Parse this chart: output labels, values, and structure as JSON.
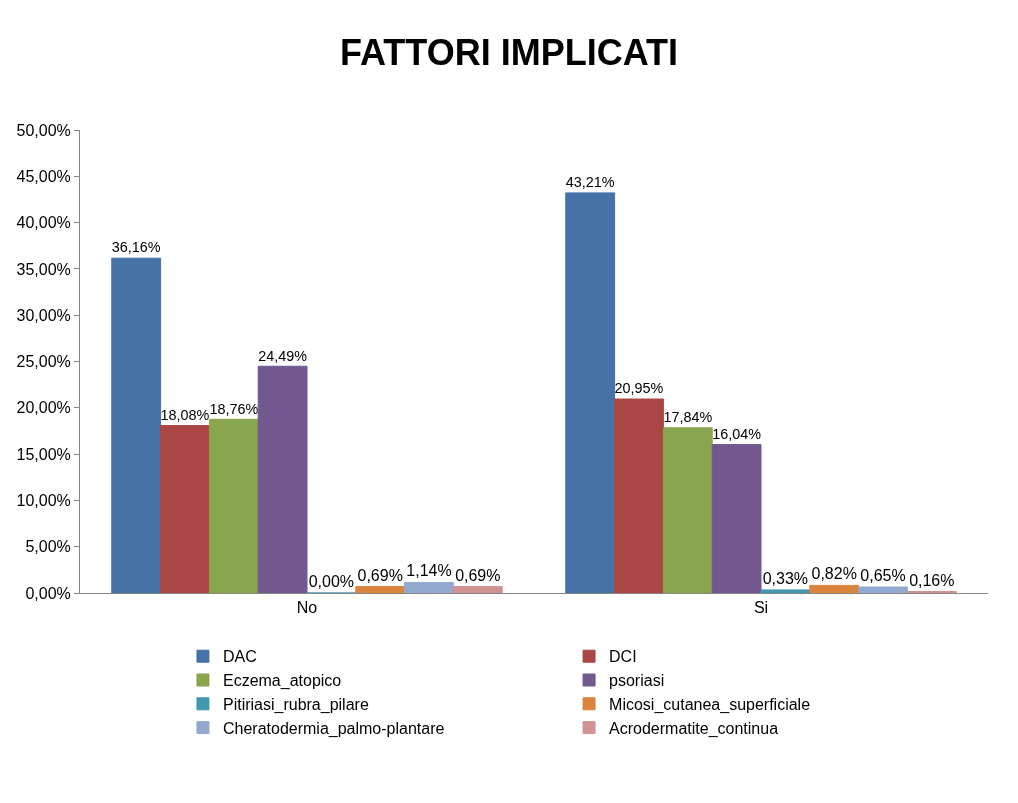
{
  "chart_data": {
    "type": "bar",
    "title": "FATTORI IMPLICATI",
    "categories": [
      "No",
      "Si"
    ],
    "series": [
      {
        "name": "DAC",
        "color": "#4572a7",
        "values": [
          36.16,
          43.21
        ],
        "value_labels": [
          "36,16%",
          "43,21%"
        ]
      },
      {
        "name": "DCI",
        "color": "#aa4643",
        "values": [
          18.08,
          20.95
        ],
        "value_labels": [
          "18,08%",
          "20,95%"
        ]
      },
      {
        "name": "Eczema_atopico",
        "color": "#89a54e",
        "values": [
          18.76,
          17.84
        ],
        "value_labels": [
          "18,76%",
          "17,84%"
        ]
      },
      {
        "name": "psoriasi",
        "color": "#71588f",
        "values": [
          24.49,
          16.04
        ],
        "value_labels": [
          "24,49%",
          "16,04%"
        ]
      },
      {
        "name": "Pitiriasi_rubra_pilare",
        "color": "#4198af",
        "values": [
          0.0,
          0.33
        ],
        "value_labels": [
          "0,00%",
          "0,33%"
        ]
      },
      {
        "name": "Micosi_cutanea_superficiale",
        "color": "#db843d",
        "values": [
          0.69,
          0.82
        ],
        "value_labels": [
          "0,69%",
          "0,82%"
        ]
      },
      {
        "name": "Cheratodermia_palmo-plantare",
        "color": "#93a9cf",
        "values": [
          1.14,
          0.65
        ],
        "value_labels": [
          "1,14%",
          "0,65%"
        ]
      },
      {
        "name": "Acrodermatite_continua",
        "color": "#d19392",
        "values": [
          0.69,
          0.16
        ],
        "value_labels": [
          "0,69%",
          "0,16%"
        ]
      }
    ],
    "ylim": [
      0,
      50
    ],
    "yticks": [
      {
        "value": 0,
        "label": "0,00%"
      },
      {
        "value": 5,
        "label": "5,00%"
      },
      {
        "value": 10,
        "label": "10,00%"
      },
      {
        "value": 15,
        "label": "15,00%"
      },
      {
        "value": 20,
        "label": "20,00%"
      },
      {
        "value": 25,
        "label": "25,00%"
      },
      {
        "value": 30,
        "label": "30,00%"
      },
      {
        "value": 35,
        "label": "35,00%"
      },
      {
        "value": 40,
        "label": "40,00%"
      },
      {
        "value": 45,
        "label": "45,00%"
      },
      {
        "value": 50,
        "label": "50,00%"
      }
    ],
    "grid": false,
    "legend": "bottom"
  }
}
